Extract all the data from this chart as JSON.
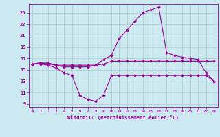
{
  "xlabel": "Windchill (Refroidissement éolien,°C)",
  "bg_color": "#cce8f0",
  "line_color": "#990099",
  "grid_color": "#aacccc",
  "xlim": [
    -0.5,
    23.5
  ],
  "ylim": [
    8.5,
    26.5
  ],
  "xticks": [
    0,
    1,
    2,
    3,
    4,
    5,
    6,
    7,
    8,
    9,
    10,
    11,
    12,
    13,
    14,
    15,
    16,
    17,
    18,
    19,
    20,
    21,
    22,
    23
  ],
  "yticks": [
    9,
    11,
    13,
    15,
    17,
    19,
    21,
    23,
    25
  ],
  "line1_x": [
    0,
    1,
    2,
    3,
    4,
    5,
    6,
    7,
    8,
    9,
    10,
    11,
    12,
    13,
    14,
    15,
    16,
    17,
    18,
    19,
    20,
    21,
    22,
    23
  ],
  "line1_y": [
    16.0,
    16.2,
    16.2,
    15.8,
    15.8,
    15.8,
    15.8,
    15.8,
    15.8,
    16.0,
    16.5,
    16.5,
    16.5,
    16.5,
    16.5,
    16.5,
    16.5,
    16.5,
    16.5,
    16.5,
    16.5,
    16.5,
    16.5,
    16.5
  ],
  "line2_x": [
    0,
    1,
    2,
    3,
    4,
    5,
    6,
    7,
    8,
    9,
    10,
    11,
    12,
    13,
    14,
    15,
    16,
    17,
    18,
    19,
    20,
    21,
    22,
    23
  ],
  "line2_y": [
    16.0,
    16.0,
    15.8,
    15.3,
    14.5,
    14.0,
    10.5,
    9.8,
    9.5,
    10.5,
    14.0,
    14.0,
    14.0,
    14.0,
    14.0,
    14.0,
    14.0,
    14.0,
    14.0,
    14.0,
    14.0,
    14.0,
    14.0,
    13.0
  ],
  "line3_x": [
    0,
    1,
    2,
    3,
    4,
    5,
    6,
    7,
    8,
    9,
    10,
    11,
    12,
    13,
    14,
    15,
    16,
    17,
    18,
    19,
    20,
    21,
    22,
    23
  ],
  "line3_y": [
    16.0,
    16.2,
    16.0,
    15.8,
    15.5,
    15.5,
    15.5,
    15.5,
    15.8,
    16.8,
    17.5,
    20.5,
    22.0,
    23.5,
    25.0,
    25.5,
    26.0,
    18.0,
    17.5,
    17.2,
    17.0,
    16.8,
    14.5,
    13.0
  ]
}
